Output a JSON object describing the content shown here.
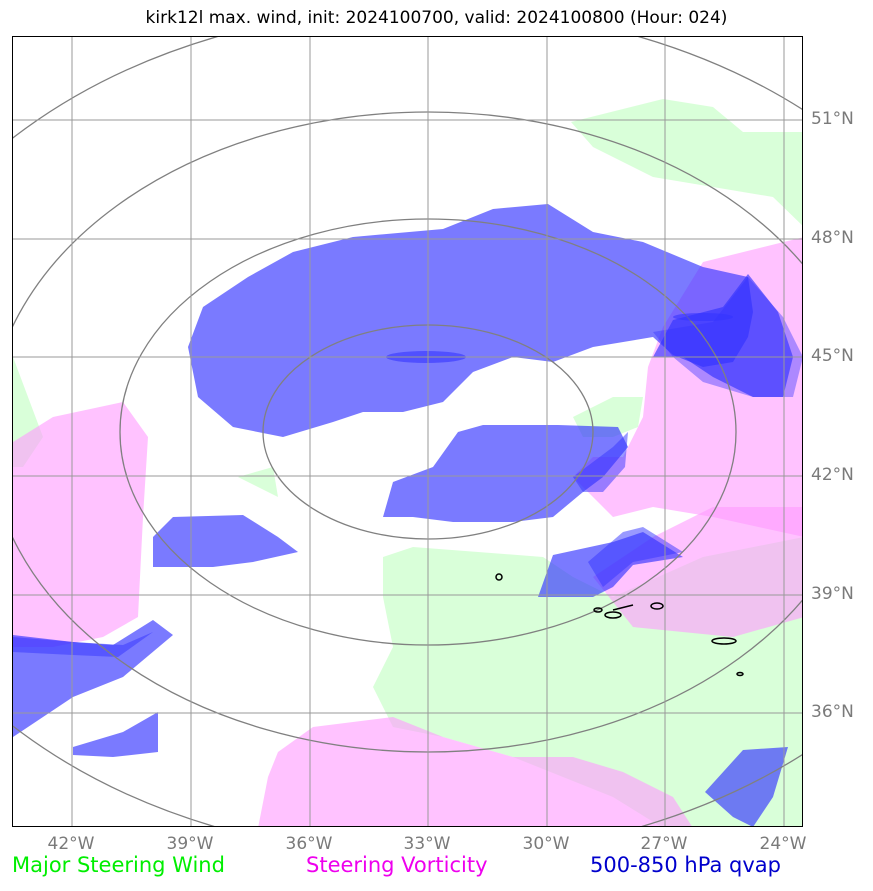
{
  "title": "kirk12l max. wind, init: 2024100700, valid: 2024100800 (Hour: 024)",
  "x_ticks": [
    "42°W",
    "39°W",
    "36°W",
    "33°W",
    "30°W",
    "27°W",
    "24°W"
  ],
  "y_ticks": [
    "51°N",
    "48°N",
    "45°N",
    "42°N",
    "39°N",
    "36°N"
  ],
  "legend": {
    "wind": "Major Steering Wind",
    "vort": "Steering Vorticity",
    "qvap": "500-850 hPa qvap"
  },
  "colors": {
    "wind_fill": "#ccffcc",
    "vort_fill": "#ff99ff",
    "qvap_fill": "#3333ff",
    "wind_label": "#00ee00",
    "vort_label": "#ee00ee",
    "qvap_label": "#0000cc",
    "grid": "#808080"
  }
}
